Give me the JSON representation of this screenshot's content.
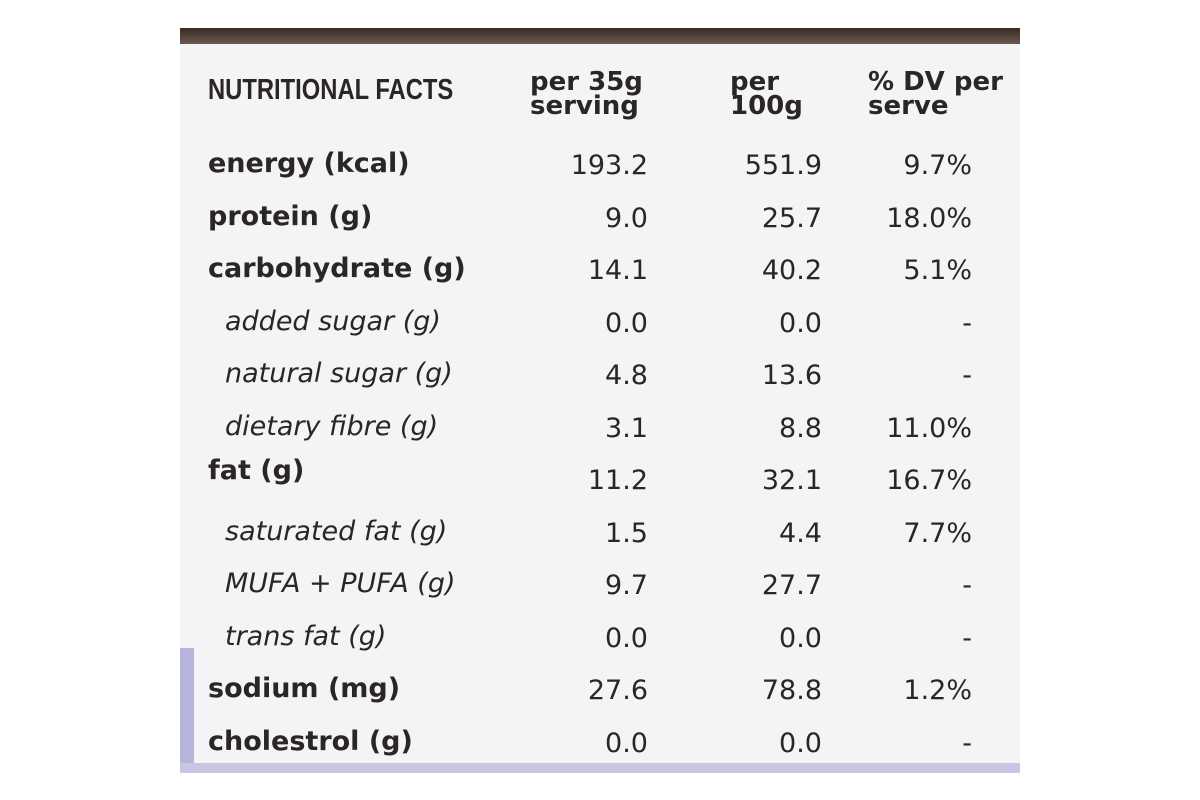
{
  "table": {
    "header": [
      "NUTRITIONAL FACTS",
      "per 35g serving",
      "per 100g",
      "% DV per serve"
    ],
    "rows": [
      [
        "energy (kcal)",
        "193.2",
        "551.9",
        "9.7%"
      ],
      [
        "protein (g)",
        "9.0",
        "25.7",
        "18.0%"
      ],
      [
        "carbohydrate (g)",
        "14.1",
        "40.2",
        "5.1%"
      ],
      [
        "added sugar (g)",
        "0.0",
        "0.0",
        "-"
      ],
      [
        "natural sugar (g)",
        "4.8",
        "13.6",
        "-"
      ],
      [
        "dietary fibre (g)",
        "3.1",
        "8.8",
        "11.0%"
      ],
      [
        "fat (g)",
        "11.2",
        "32.1",
        "16.7%"
      ],
      [
        "saturated fat (g)",
        "1.5",
        "4.4",
        "7.7%"
      ],
      [
        "MUFA + PUFA (g)",
        "9.7",
        "27.7",
        "-"
      ],
      [
        "trans fat (g)",
        "0.0",
        "0.0",
        "-"
      ],
      [
        "sodium (mg)",
        "27.6",
        "78.8",
        "1.2%"
      ],
      [
        "cholestrol (g)",
        "0.0",
        "0.0",
        "-"
      ]
    ]
  }
}
